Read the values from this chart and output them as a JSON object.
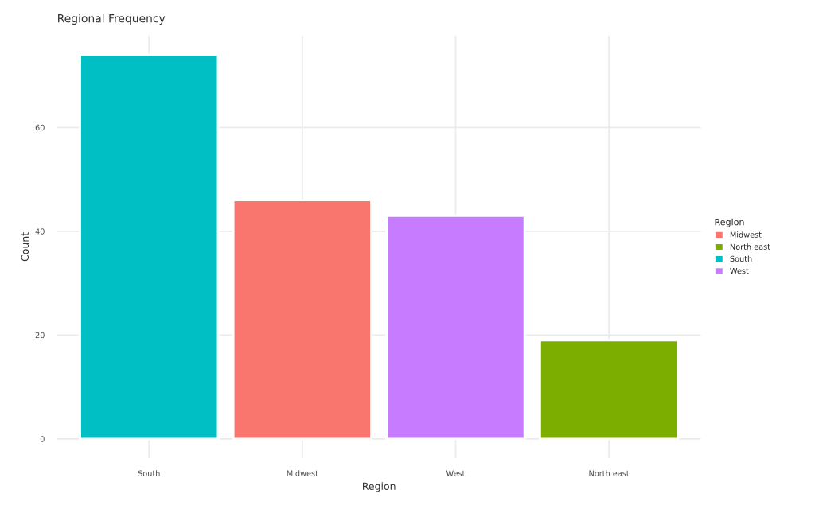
{
  "chart_data": {
    "type": "bar",
    "title": "Regional Frequency",
    "xlabel": "Region",
    "ylabel": "Count",
    "legend_title": "Region",
    "categories": [
      "South",
      "Midwest",
      "West",
      "North east"
    ],
    "series": [
      {
        "name": "Midwest",
        "color": "#f8766d",
        "values": [
          null,
          46,
          null,
          null
        ]
      },
      {
        "name": "North east",
        "color": "#7cae00",
        "values": [
          null,
          null,
          null,
          19
        ]
      },
      {
        "name": "South",
        "color": "#00bfc4",
        "values": [
          74,
          null,
          null,
          null
        ]
      },
      {
        "name": "West",
        "color": "#c77cff",
        "values": [
          null,
          null,
          43,
          null
        ]
      }
    ],
    "ylim": [
      -3.7,
      77.7
    ],
    "yticks": [
      0,
      20,
      40,
      60
    ],
    "grid": true,
    "legend": "right"
  }
}
